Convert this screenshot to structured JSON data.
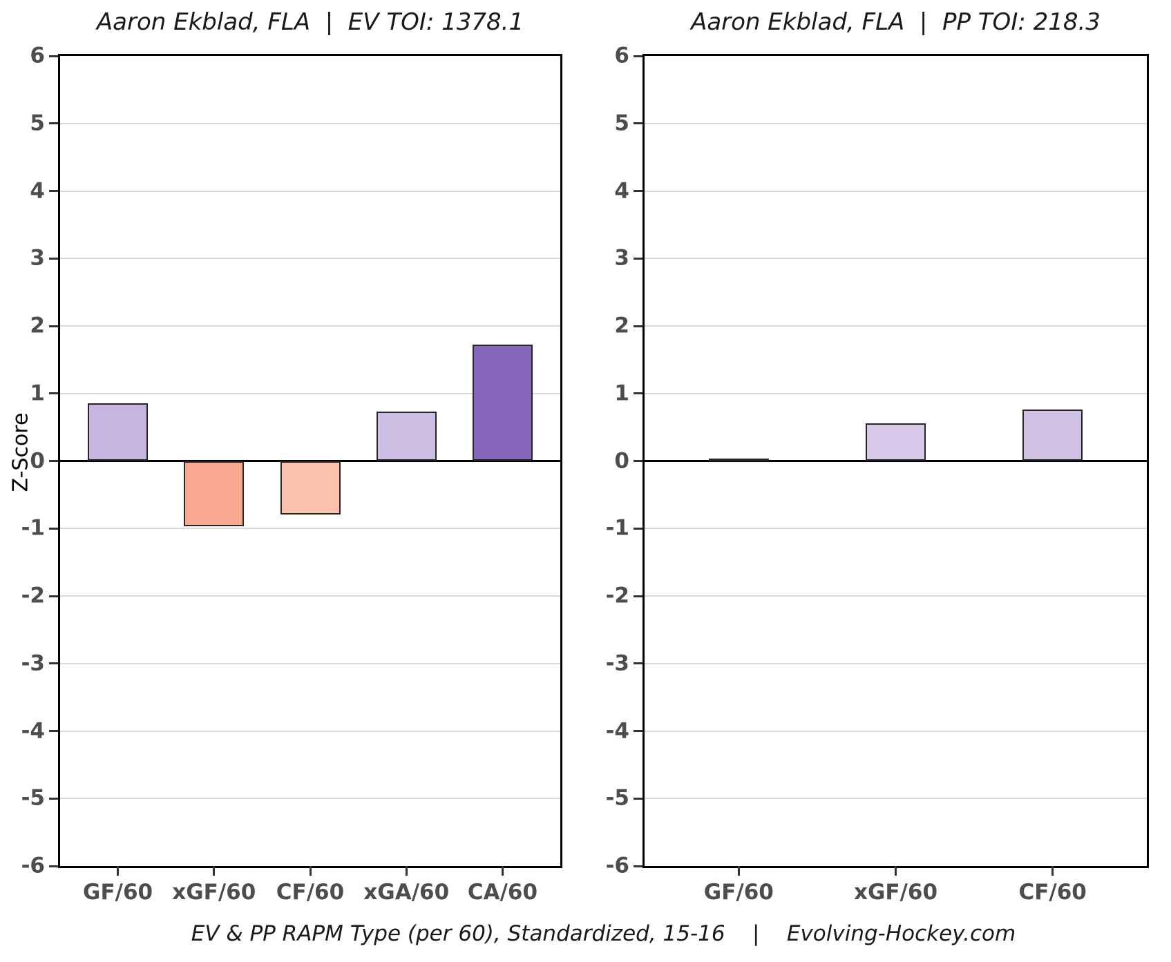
{
  "ylabel": "Z-Score",
  "caption": "EV & PP RAPM Type (per 60), Standardized, 15-16    |    Evolving-Hockey.com",
  "colors": {
    "grid": "#d9d9d9",
    "zero_line": "#000000",
    "panel_border": "#000000",
    "tick_label": "#4d4d4d",
    "bar_border": "#262626",
    "title_text": "#1a1a1a"
  },
  "chart_data": [
    {
      "type": "bar",
      "title": "Aaron Ekblad, FLA  |  EV TOI: 1378.1",
      "player": "Aaron Ekblad",
      "team": "FLA",
      "strength": "EV",
      "toi": 1378.1,
      "categories": [
        "GF/60",
        "xGF/60",
        "CF/60",
        "xGA/60",
        "CA/60"
      ],
      "values": [
        0.85,
        -0.97,
        -0.79,
        0.73,
        1.72
      ],
      "bar_colors": [
        "#c6b6df",
        "#f8a88e",
        "#fbc1ad",
        "#cdbfe4",
        "#8767bc"
      ],
      "ylabel": "Z-Score",
      "ylim": [
        -6,
        6
      ],
      "ytick_step": 1,
      "grid": true,
      "zero_line": true,
      "legend": false
    },
    {
      "type": "bar",
      "title": "Aaron Ekblad, FLA  |  PP TOI: 218.3",
      "player": "Aaron Ekblad",
      "team": "FLA",
      "strength": "PP",
      "toi": 218.3,
      "categories": [
        "GF/60",
        "xGF/60",
        "CF/60"
      ],
      "values": [
        0.04,
        0.56,
        0.76
      ],
      "bar_colors": [
        "#f8f5fb",
        "#d6c9e9",
        "#cfc0e4"
      ],
      "ylabel": "Z-Score",
      "ylim": [
        -6,
        6
      ],
      "ytick_step": 1,
      "grid": true,
      "zero_line": true,
      "legend": false
    }
  ]
}
